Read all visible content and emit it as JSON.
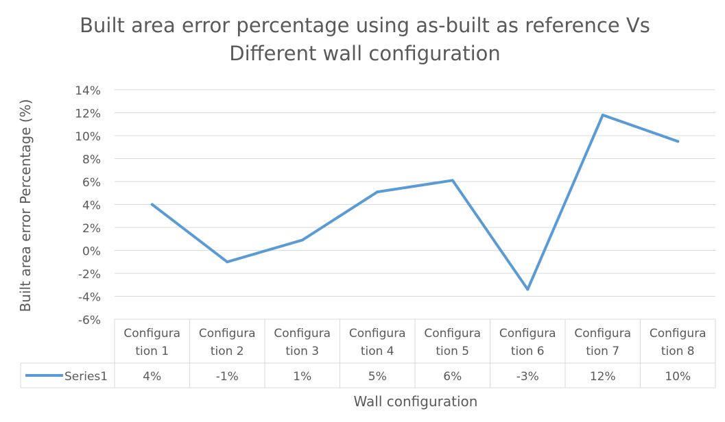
{
  "chart_data": {
    "type": "line",
    "title_line1": "Built area error percentage using as-built as reference Vs",
    "title_line2": "Different wall configuration",
    "xlabel": "Wall configuration",
    "ylabel": "Built area error Percentage (%)",
    "ylim": [
      -6,
      14
    ],
    "yticks": [
      -6,
      -4,
      -2,
      0,
      2,
      4,
      6,
      8,
      10,
      12,
      14
    ],
    "ytick_labels": [
      "-6%",
      "-4%",
      "-2%",
      "0%",
      "2%",
      "4%",
      "6%",
      "8%",
      "10%",
      "12%",
      "14%"
    ],
    "categories": [
      [
        "Configura",
        "tion 1"
      ],
      [
        "Configura",
        "tion 2"
      ],
      [
        "Configura",
        "tion 3"
      ],
      [
        "Configura",
        "tion 4"
      ],
      [
        "Configura",
        "tion 5"
      ],
      [
        "Configura",
        "tion 6"
      ],
      [
        "Configura",
        "tion 7"
      ],
      [
        "Configura",
        "tion 8"
      ]
    ],
    "series": [
      {
        "name": "Series1",
        "values": [
          4.0,
          -1.0,
          0.9,
          5.1,
          6.1,
          -3.4,
          11.8,
          9.5
        ],
        "labels": [
          "4%",
          "-1%",
          "1%",
          "5%",
          "6%",
          "-3%",
          "12%",
          "10%"
        ]
      }
    ],
    "grid": true,
    "legend": "data-table",
    "colors": {
      "line": "#5B9BD5",
      "grid": "#D9D9D9",
      "text": "#595959",
      "title": "#595959"
    }
  }
}
